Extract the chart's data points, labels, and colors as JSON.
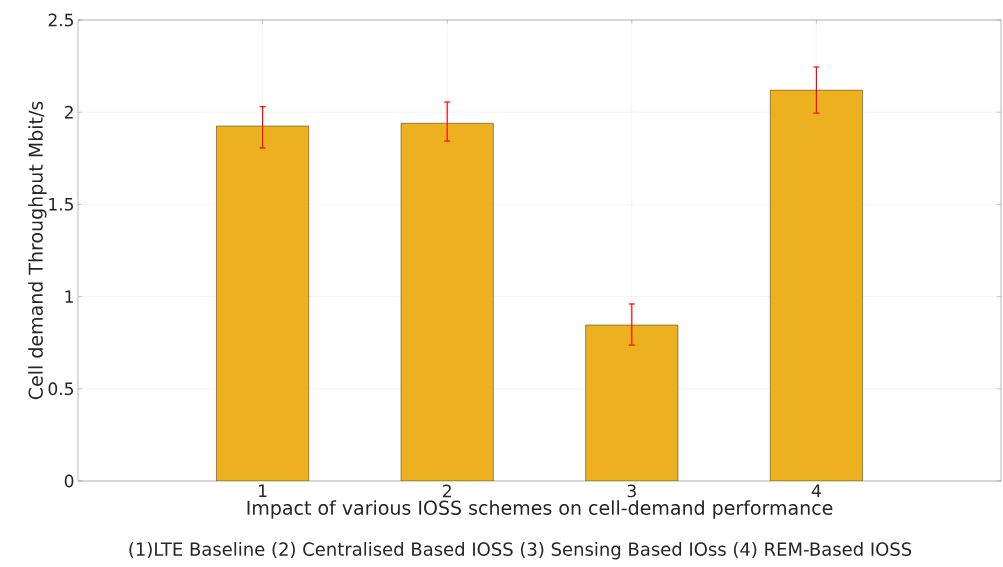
{
  "chart_data": {
    "type": "bar",
    "x": [
      1,
      2,
      3,
      4
    ],
    "values": [
      1.925,
      1.94,
      0.846,
      2.12
    ],
    "color": "#edb120",
    "errors": [
      [
        1.806,
        2.03
      ],
      [
        1.844,
        2.055
      ],
      [
        0.737,
        0.96
      ],
      [
        1.995,
        2.245
      ]
    ],
    "xlim": [
      0,
      5
    ],
    "xticks": [
      1,
      2,
      3,
      4
    ],
    "ylim": [
      0,
      2.5
    ],
    "yticks": [
      0,
      0.5,
      1,
      1.5,
      2,
      2.5
    ],
    "grid": true,
    "xlabel": "Impact of various IOSS schemes on cell-demand performance",
    "ylabel": "Cell demand Throughput Mbit/s",
    "annotations": [
      "(1)LTE Baseline (2) Centralised Based IOSS (3) Sensing Based IOss (4) REM-Based IOSS"
    ]
  }
}
